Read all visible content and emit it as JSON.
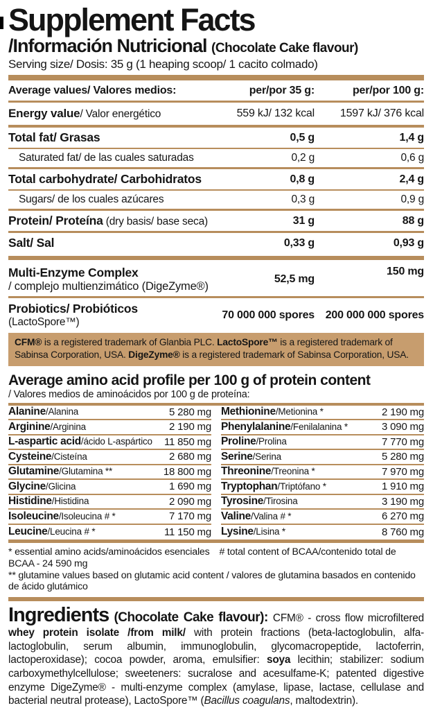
{
  "colors": {
    "accent_bar": "#b78d5c",
    "note_bg": "#c79d6e"
  },
  "header": {
    "title": "Supplement Facts",
    "subtitle": "/Información Nutricional",
    "flavour": "(Chocolate Cake flavour)",
    "serving": "Serving size/ Dosis: 35 g (1 heaping scoop/ 1 cacito colmado)"
  },
  "nutrition": {
    "columns": {
      "label": "Average values/ Valores medios:",
      "per35": "per/por 35 g:",
      "per100": "per/por 100 g:"
    },
    "rows": [
      {
        "en": "Energy value",
        "es": "/ Valor energético",
        "v35": "559 kJ/ 132 kcal",
        "v100": "1597 kJ/ 376 kcal"
      },
      {
        "en": "Total fat/ Grasas",
        "es": "",
        "v35": "0,5 g",
        "v100": "1,4 g"
      },
      {
        "en": "Saturated fat/ de las cuales saturadas",
        "es": "",
        "v35": "0,2 g",
        "v100": "0,6 g"
      },
      {
        "en": "Total carbohydrate/ Carbohidratos",
        "es": "",
        "v35": "0,8 g",
        "v100": "2,4 g"
      },
      {
        "en": "Sugars/ de los cuales azúcares",
        "es": "",
        "v35": "0,3 g",
        "v100": "0,9 g"
      },
      {
        "en": "Protein/ Proteína",
        "es": " (dry basis/ base seca)",
        "v35": "31 g",
        "v100": "88 g"
      },
      {
        "en": "Salt/ Sal",
        "es": "",
        "v35": "0,33 g",
        "v100": "0,93 g"
      },
      {
        "en": "Multi-Enzyme Complex",
        "es": "/ complejo multienzimático (DigeZyme®)",
        "v35": "52,5 mg",
        "v100": "150 mg"
      },
      {
        "en": "Probiotics/ Probióticos",
        "es": " (LactoSpore™)",
        "v35": "70 000 000 spores",
        "v100": "200 000 000 spores"
      }
    ]
  },
  "trademark_note": {
    "b1": "CFM®",
    "r1": " is a registered trademark of Glanbia PLC. ",
    "b2": "LactoSpore™",
    "r2": " is a registered trademark of Sabinsa Corporation, USA. ",
    "b3": "DigeZyme®",
    "r3": " is a registered trademark of Sabinsa Corporation, USA."
  },
  "amino": {
    "title": "Average amino acid profile per 100 g of protein content",
    "subtitle": "/ Valores medios de aminoácidos por 100 g de proteína:",
    "left": [
      {
        "en": "Alanine",
        "es": "/Alanina",
        "v": "5 280 mg"
      },
      {
        "en": "Arginine",
        "es": "/Arginina",
        "v": "2 190 mg"
      },
      {
        "en": "L-aspartic acid",
        "es": "/ácido L-aspártico",
        "v": "11 850 mg"
      },
      {
        "en": "Cysteine",
        "es": "/Cisteína",
        "v": "2 680 mg"
      },
      {
        "en": "Glutamine",
        "es": "/Glutamina **",
        "v": "18 800 mg"
      },
      {
        "en": "Glycine",
        "es": "/Glicina",
        "v": "1 690 mg"
      },
      {
        "en": "Histidine",
        "es": "/Histidina",
        "v": "2 090 mg"
      },
      {
        "en": "Isoleucine",
        "es": "/Isoleucina # *",
        "v": "7 170 mg"
      },
      {
        "en": "Leucine",
        "es": "/Leucina # *",
        "v": "11 150 mg"
      }
    ],
    "right": [
      {
        "en": "Methionine",
        "es": "/Metionina *",
        "v": "2 190 mg"
      },
      {
        "en": "Phenylalanine",
        "es": "/Fenilalanina *",
        "v": "3 090 mg"
      },
      {
        "en": "Proline",
        "es": "/Prolina",
        "v": "7 770 mg"
      },
      {
        "en": "Serine",
        "es": "/Serina",
        "v": "5 280 mg"
      },
      {
        "en": "Threonine",
        "es": "/Treonina *",
        "v": "7 970 mg"
      },
      {
        "en": "Tryptophan",
        "es": "/Triptófano *",
        "v": "1 910 mg"
      },
      {
        "en": "Tyrosine",
        "es": "/Tirosina",
        "v": "3 190 mg"
      },
      {
        "en": "Valine",
        "es": "/Valina # *",
        "v": "6 270 mg"
      },
      {
        "en": "Lysine",
        "es": "/Lisina *",
        "v": "8 760 mg"
      }
    ],
    "footnote1a": "*  essential amino acids/aminoácidos esenciales",
    "footnote1b": "# total content of BCAA/contenido total de BCAA - 24 590 mg",
    "footnote2": "** glutamine values based on glutamic acid content / valores de glutamina basados en contenido de ácido glutámico"
  },
  "ingredients": {
    "heading": "Ingredients",
    "flavour": " (Chocolate Cake flavour): ",
    "r1": "CFM® - cross flow microfiltered ",
    "b1": "whey protein isolate /from milk/",
    "r2": " with protein fractions (beta-lactoglobulin, alfa-lactoglobulin, serum albumin, immunoglobulin, glycomacropeptide, lactoferrin, lactoperoxidase); cocoa powder, aroma, emulsifier: ",
    "b2": "soya",
    "r3": " lecithin; stabilizer: sodium carboxymethylcellulose; sweeteners: sucralose and acesulfame-K; patented digestive enzyme DigeZyme® - multi-enzyme complex (amylase, lipase, lactase, cellulase and bacterial neutral protease), LactoSpore™ (",
    "i1": "Bacillus coagulans",
    "r4": ", maltodextrin)."
  }
}
